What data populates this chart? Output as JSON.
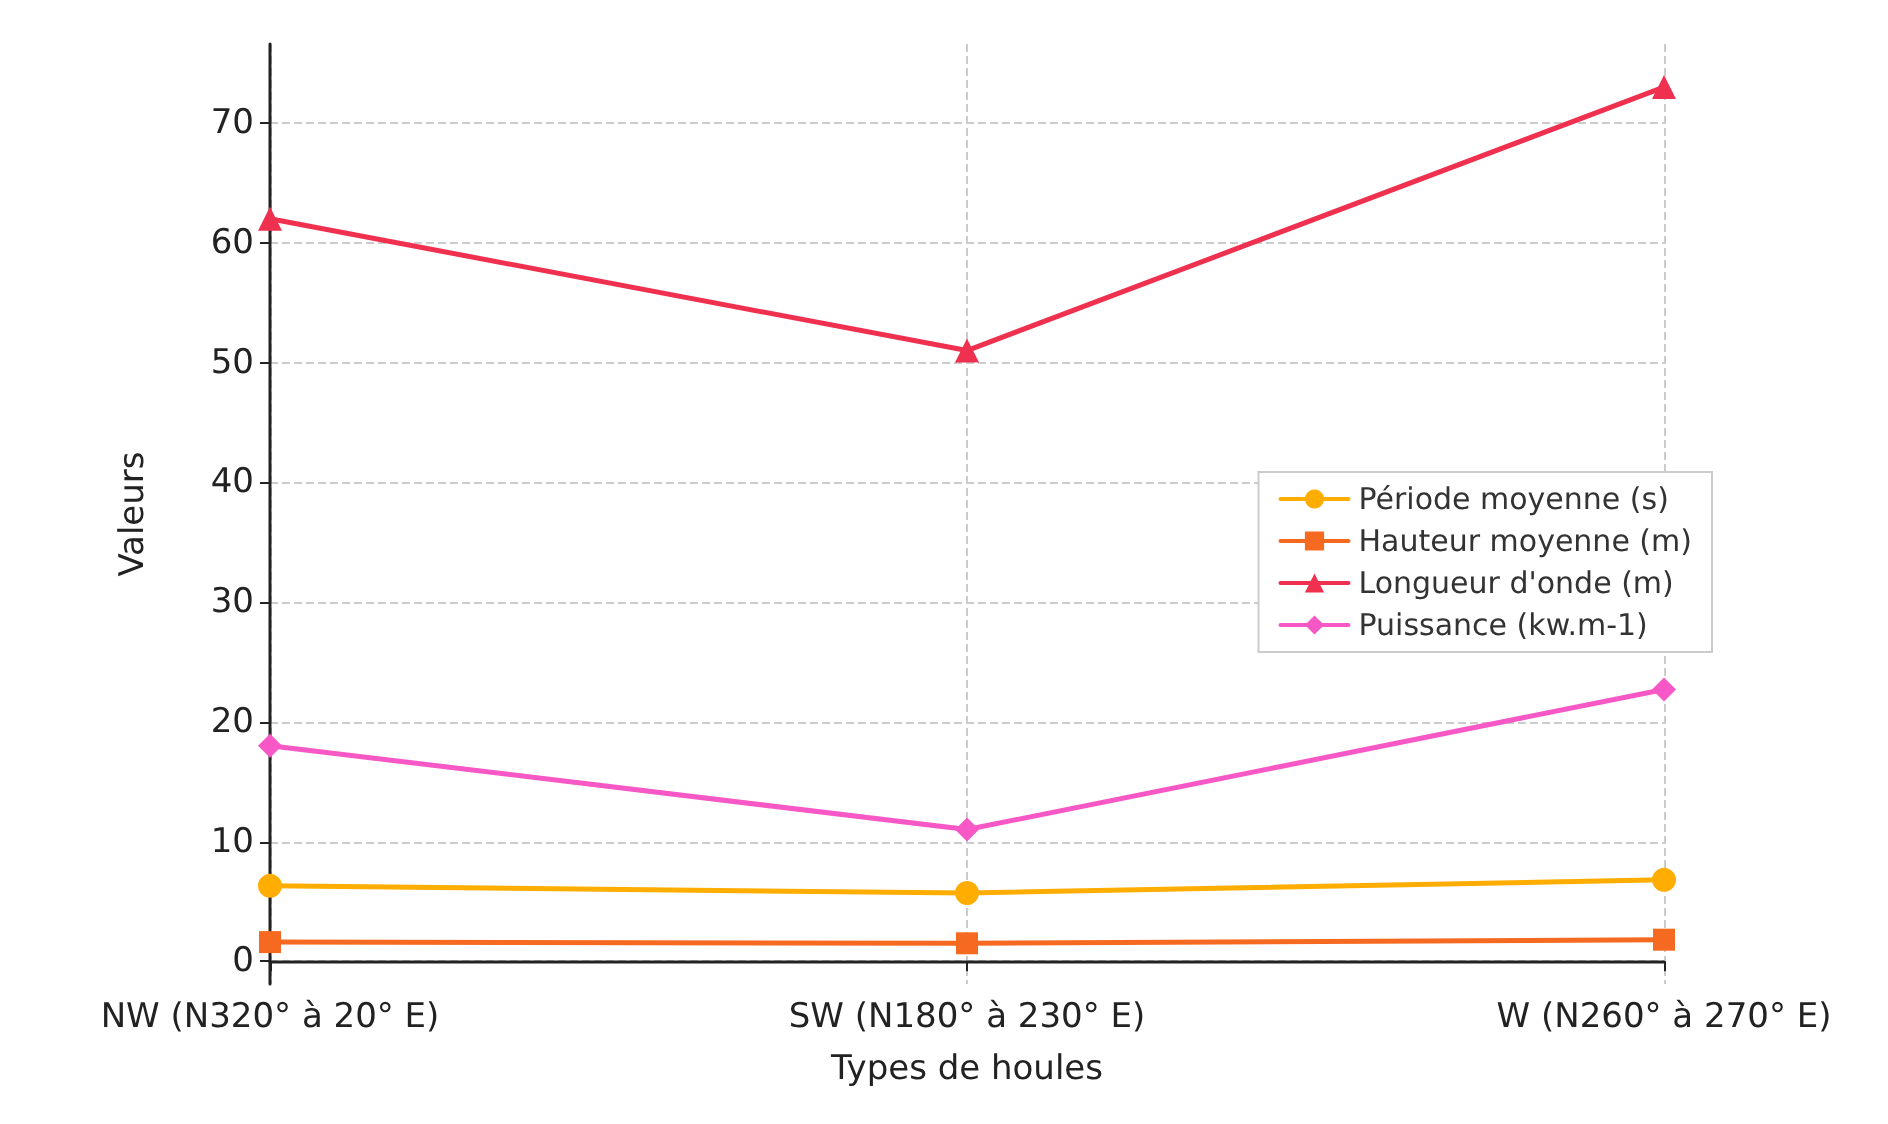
{
  "chart_data": {
    "type": "line",
    "xlabel": "Types de houles",
    "ylabel": "Valeurs",
    "categories": [
      "NW (N320° à 20° E)",
      "SW (N180° à 230° E)",
      "W (N260° à 270° E)"
    ],
    "series": [
      {
        "name": "Période moyenne (s)",
        "color": "#ffad00",
        "marker": "circle",
        "values": [
          6.3,
          5.7,
          6.8
        ]
      },
      {
        "name": "Hauteur moyenne (m)",
        "color": "#f56a20",
        "marker": "square",
        "values": [
          1.6,
          1.5,
          1.8
        ]
      },
      {
        "name": "Longueur d'onde (m)",
        "color": "#f0304f",
        "marker": "triangle",
        "values": [
          62,
          51,
          73
        ]
      },
      {
        "name": "Puissance (kw.m-1)",
        "color": "#f758c5",
        "marker": "diamond",
        "values": [
          18,
          11,
          22.7
        ]
      }
    ],
    "ylim": [
      -1.9,
      76.6
    ],
    "yticks": [
      0,
      10,
      20,
      30,
      40,
      50,
      60,
      70
    ],
    "grid": true,
    "legend": "right",
    "line_style": "solid"
  }
}
